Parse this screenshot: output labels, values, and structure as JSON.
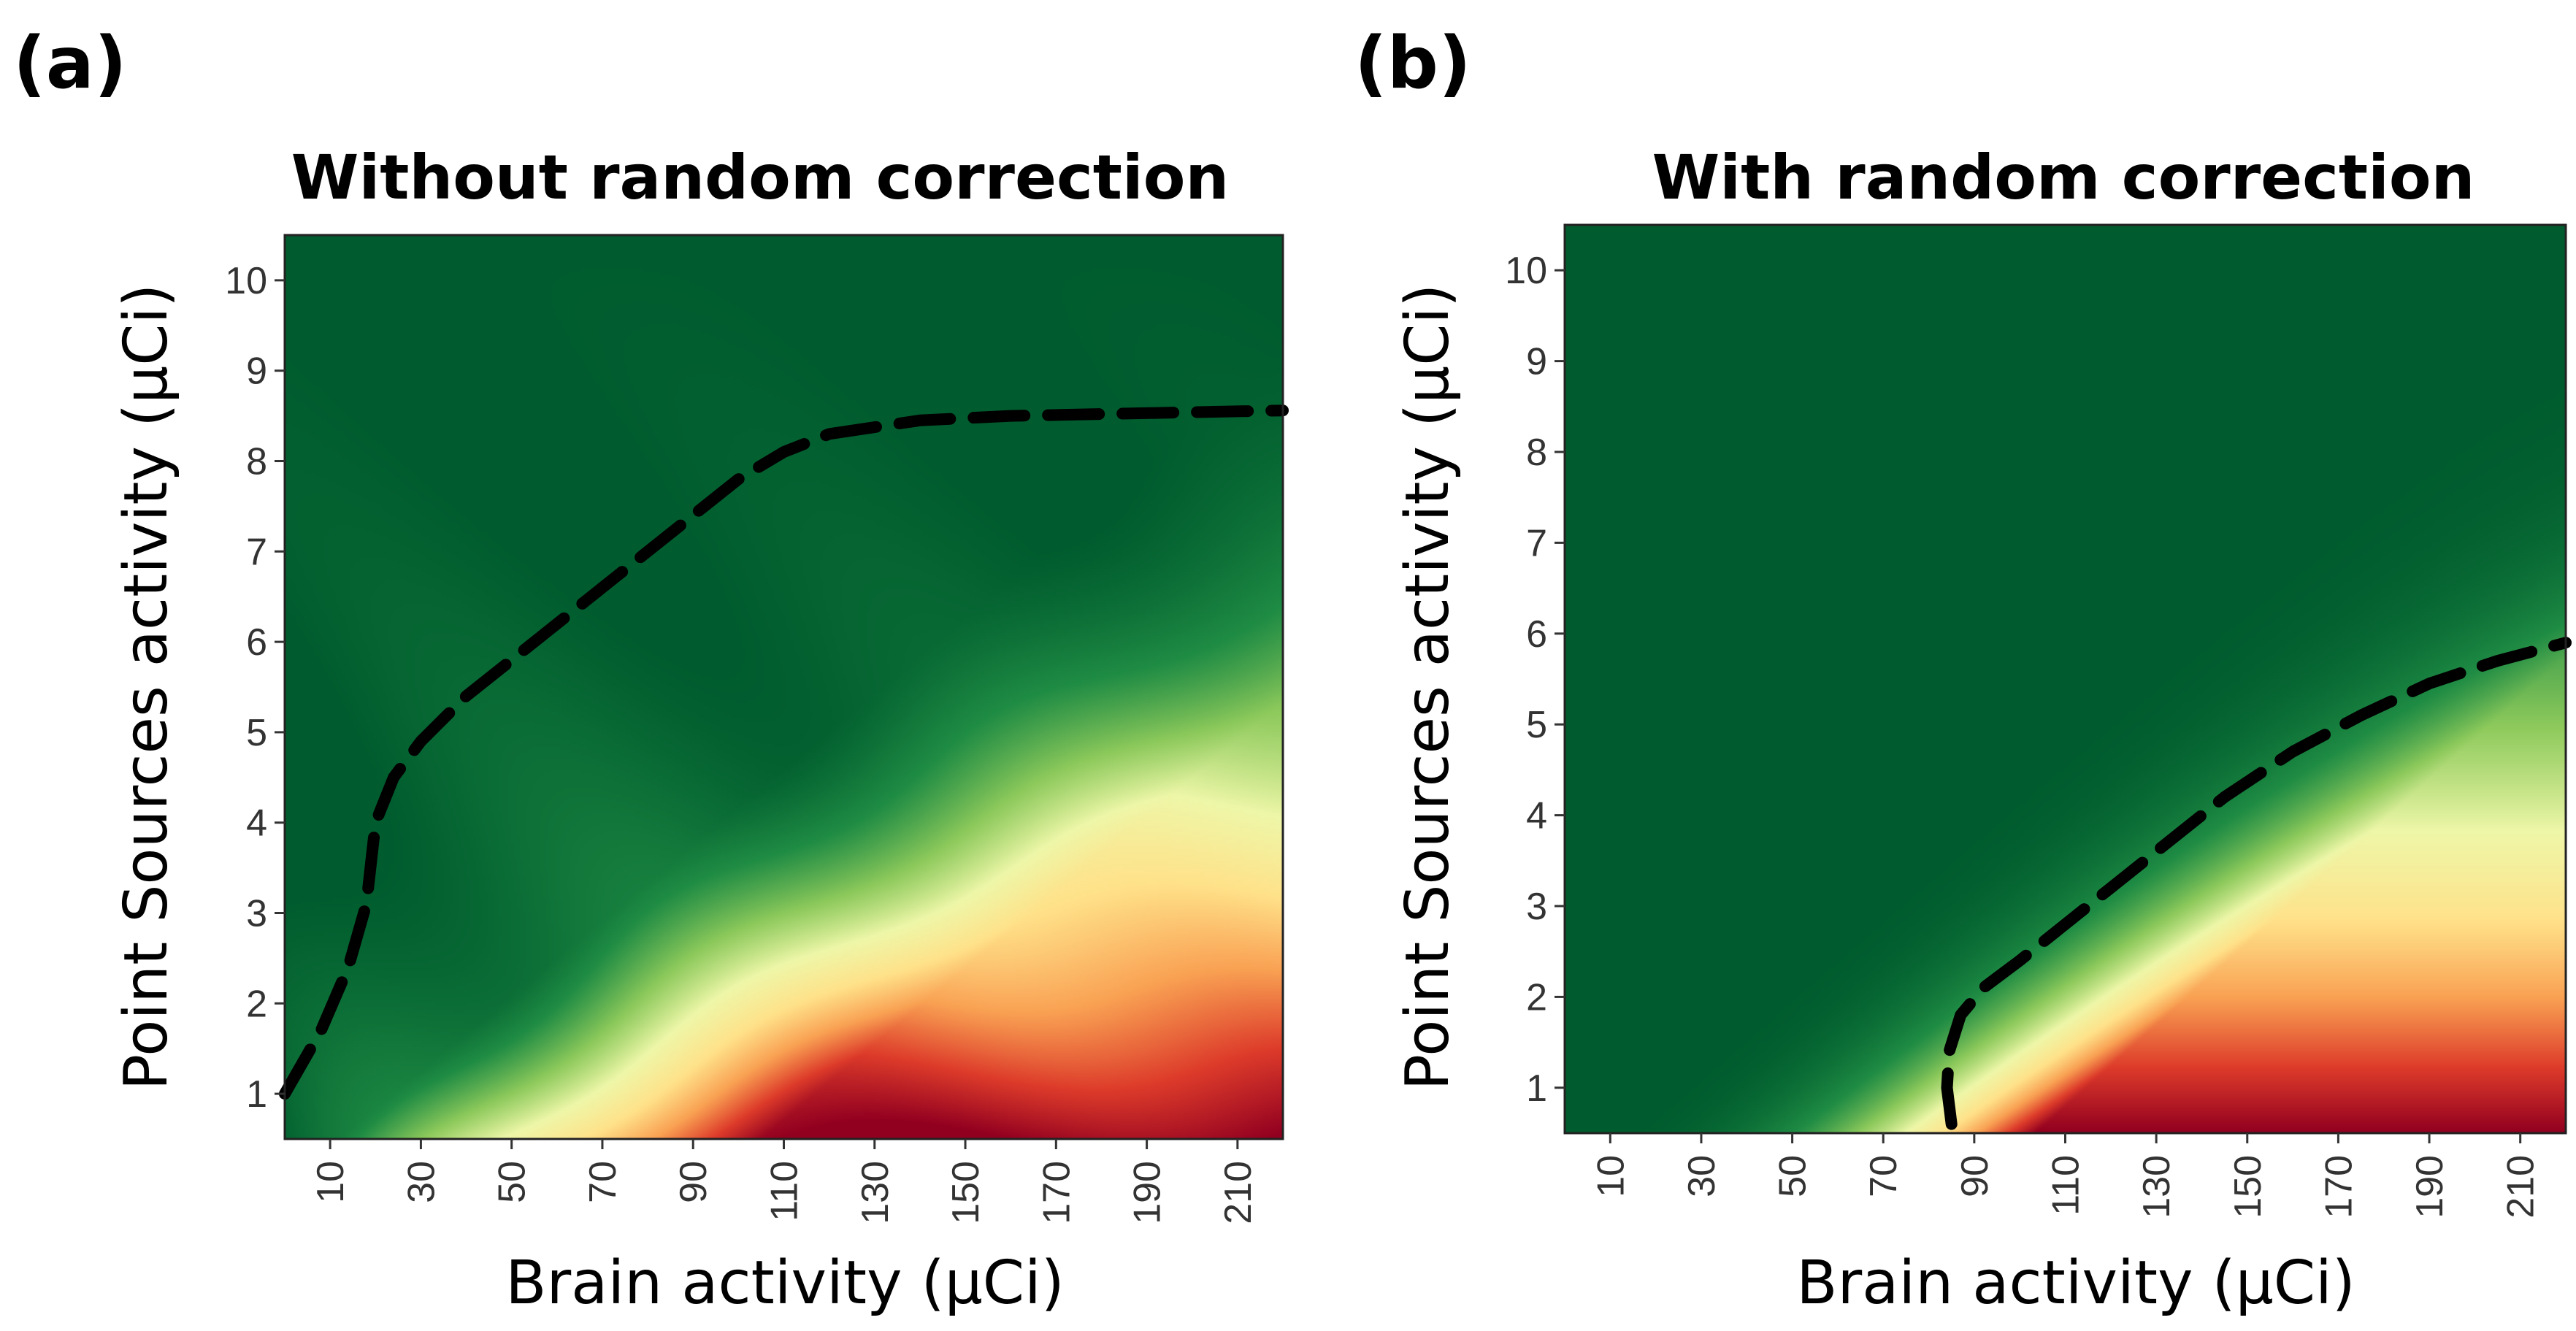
{
  "colorscale": [
    "#005c2e",
    "#1f8c44",
    "#8cc95b",
    "#eef7a8",
    "#ffe28a",
    "#f9a153",
    "#dd3b2a",
    "#920020"
  ],
  "chart_data": [
    {
      "type": "heatmap",
      "panel_label": "(a)",
      "title": "Without random correction",
      "xlabel": "Brain activity (µCi)",
      "ylabel": "Point Sources activity (µCi)",
      "xlim": [
        0,
        220
      ],
      "ylim": [
        0.5,
        10.5
      ],
      "xticks": [
        10,
        30,
        50,
        70,
        90,
        110,
        130,
        150,
        170,
        190,
        210
      ],
      "yticks": [
        1,
        2,
        3,
        4,
        5,
        6,
        7,
        8,
        9,
        10
      ],
      "value_range": [
        0,
        1
      ],
      "boundary_contour": {
        "style": "dashed",
        "color": "#000000",
        "x": [
          0,
          8,
          14,
          18,
          20,
          24,
          30,
          40,
          55,
          70,
          85,
          100,
          110,
          120,
          140,
          160,
          180,
          200,
          220
        ],
        "y": [
          1.0,
          1.7,
          2.4,
          3.1,
          4.0,
          4.5,
          4.9,
          5.4,
          6.0,
          6.6,
          7.2,
          7.8,
          8.1,
          8.3,
          8.45,
          8.5,
          8.52,
          8.54,
          8.56
        ]
      },
      "model": {
        "bx": 0.0107,
        "by": 1.04,
        "gx": 2.2,
        "gy": 1.6,
        "wave": 0.045,
        "floor": 0.22
      }
    },
    {
      "type": "heatmap",
      "panel_label": "(b)",
      "title": "With random correction",
      "xlabel": "Brain activity (µCi)",
      "ylabel": "Point Sources activity (µCi)",
      "xlim": [
        0,
        220
      ],
      "ylim": [
        0.5,
        10.5
      ],
      "xticks": [
        10,
        30,
        50,
        70,
        90,
        110,
        130,
        150,
        170,
        190,
        210
      ],
      "yticks": [
        1,
        2,
        3,
        4,
        5,
        6,
        7,
        8,
        9,
        10
      ],
      "value_range": [
        0,
        1
      ],
      "boundary_contour": {
        "style": "dashed",
        "color": "#000000",
        "x": [
          85,
          84,
          84.5,
          87,
          92,
          100,
          110,
          120,
          130,
          145,
          160,
          175,
          190,
          205,
          220
        ],
        "y": [
          0.6,
          1.0,
          1.4,
          1.8,
          2.1,
          2.4,
          2.8,
          3.2,
          3.6,
          4.2,
          4.7,
          5.1,
          5.45,
          5.7,
          5.9
        ]
      },
      "model": {
        "bx": 0.0108,
        "by": 0.98,
        "gx": 4.6,
        "gy": 2.1,
        "wave": 0.0,
        "floor": 0.0
      }
    }
  ]
}
